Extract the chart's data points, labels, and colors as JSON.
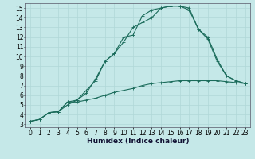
{
  "xlabel": "Humidex (Indice chaleur)",
  "bg_color": "#c5e8e8",
  "line_color": "#1a6b5a",
  "grid_major_color": "#b0d8d8",
  "grid_minor_color": "#c0e0e0",
  "xlim": [
    -0.5,
    23.5
  ],
  "ylim": [
    2.7,
    15.5
  ],
  "xticks": [
    0,
    1,
    2,
    3,
    4,
    5,
    6,
    7,
    8,
    9,
    10,
    11,
    12,
    13,
    14,
    15,
    16,
    17,
    18,
    19,
    20,
    21,
    22,
    23
  ],
  "yticks": [
    3,
    4,
    5,
    6,
    7,
    8,
    9,
    10,
    11,
    12,
    13,
    14,
    15
  ],
  "line1_x": [
    0,
    1,
    2,
    3,
    4,
    5,
    6,
    7,
    8,
    9,
    10,
    11,
    12,
    13,
    14,
    15,
    16,
    17,
    18,
    19,
    20,
    21,
    22,
    23
  ],
  "line1_y": [
    3.3,
    3.5,
    4.2,
    4.3,
    5.3,
    5.3,
    5.5,
    5.7,
    6.0,
    6.3,
    6.5,
    6.7,
    7.0,
    7.2,
    7.3,
    7.4,
    7.5,
    7.5,
    7.5,
    7.5,
    7.5,
    7.4,
    7.3,
    7.2
  ],
  "line2_x": [
    0,
    1,
    2,
    3,
    4,
    5,
    6,
    7,
    8,
    9,
    10,
    11,
    12,
    13,
    14,
    15,
    16,
    17,
    18,
    19,
    20,
    21,
    22,
    23
  ],
  "line2_y": [
    3.3,
    3.5,
    4.2,
    4.3,
    5.0,
    5.5,
    6.2,
    7.7,
    9.5,
    10.3,
    12.0,
    12.2,
    14.2,
    14.8,
    15.0,
    15.2,
    15.2,
    15.0,
    12.8,
    12.0,
    9.7,
    8.0,
    7.5,
    7.2
  ],
  "line3_x": [
    0,
    1,
    2,
    3,
    4,
    5,
    6,
    7,
    8,
    9,
    10,
    11,
    12,
    13,
    14,
    15,
    16,
    17,
    18,
    19,
    20,
    21,
    22,
    23
  ],
  "line3_y": [
    3.3,
    3.5,
    4.2,
    4.3,
    5.3,
    5.5,
    6.5,
    7.5,
    9.5,
    10.3,
    11.5,
    13.0,
    13.5,
    14.0,
    15.0,
    15.2,
    15.2,
    14.8,
    12.8,
    11.8,
    9.5,
    8.0,
    7.5,
    7.2
  ],
  "tick_fontsize": 5.5,
  "xlabel_fontsize": 6.5
}
